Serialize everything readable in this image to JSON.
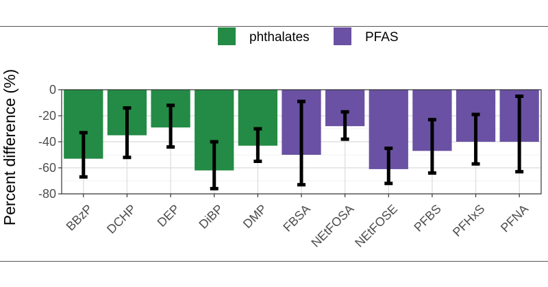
{
  "chart_data": {
    "type": "bar",
    "title": "",
    "xlabel": "",
    "ylabel": "Percent difference (%)",
    "ylim": [
      -80,
      0
    ],
    "yticks": [
      0,
      -20,
      -40,
      -60,
      -80
    ],
    "ytick_labels": [
      "0",
      "-20",
      "-40",
      "-60",
      "-80"
    ],
    "grid": true,
    "legend_position": "top",
    "categories": [
      "BBzP",
      "DCHP",
      "DEP",
      "DiBP",
      "DMP",
      "FBSA",
      "NEtFOSA",
      "NEtFOSE",
      "PFBS",
      "PFHxS",
      "PFNA"
    ],
    "groups": [
      "phthalates",
      "phthalates",
      "phthalates",
      "phthalates",
      "phthalates",
      "PFAS",
      "PFAS",
      "PFAS",
      "PFAS",
      "PFAS",
      "PFAS"
    ],
    "values": [
      -53,
      -35,
      -29,
      -62,
      -43,
      -50,
      -28,
      -61,
      -47,
      -40,
      -40
    ],
    "error_low": [
      -67,
      -52,
      -44,
      -76,
      -55,
      -73,
      -38,
      -72,
      -64,
      -57,
      -63
    ],
    "error_high": [
      -33,
      -14,
      -12,
      -40,
      -30,
      -9,
      -17,
      -45,
      -23,
      -19,
      -5
    ],
    "legend": [
      {
        "name": "phthalates",
        "color": "#238b45"
      },
      {
        "name": "PFAS",
        "color": "#6a51a3"
      }
    ]
  }
}
